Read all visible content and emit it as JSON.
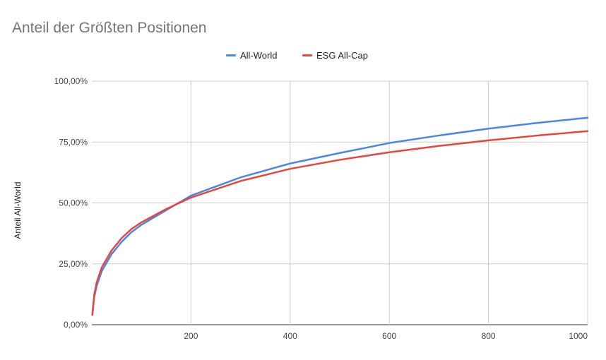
{
  "chart_data": {
    "type": "line",
    "title": "Anteil der Größten Positionen",
    "ylabel": "Anteil All-World",
    "xlabel": "",
    "x_ticks": [
      "200",
      "400",
      "600",
      "800",
      "1000"
    ],
    "y_ticks": [
      "0,00%",
      "25,00%",
      "50,00%",
      "75,00%",
      "100,00%"
    ],
    "xlim": [
      0,
      1000
    ],
    "ylim": [
      0,
      1
    ],
    "grid": true,
    "legend_position": "top",
    "x": [
      1,
      5,
      10,
      20,
      40,
      60,
      80,
      100,
      150,
      200,
      300,
      400,
      500,
      600,
      700,
      800,
      900,
      1000
    ],
    "series": [
      {
        "name": "All-World",
        "color": "#4a86e8",
        "values": [
          0.04,
          0.115,
          0.16,
          0.22,
          0.29,
          0.34,
          0.38,
          0.41,
          0.47,
          0.53,
          0.605,
          0.662,
          0.705,
          0.746,
          0.777,
          0.805,
          0.829,
          0.85
        ]
      },
      {
        "name": "ESG All-Cap",
        "color": "#e8453c",
        "values": [
          0.04,
          0.125,
          0.175,
          0.235,
          0.305,
          0.355,
          0.393,
          0.42,
          0.475,
          0.522,
          0.59,
          0.64,
          0.677,
          0.708,
          0.734,
          0.757,
          0.777,
          0.795
        ]
      }
    ]
  }
}
